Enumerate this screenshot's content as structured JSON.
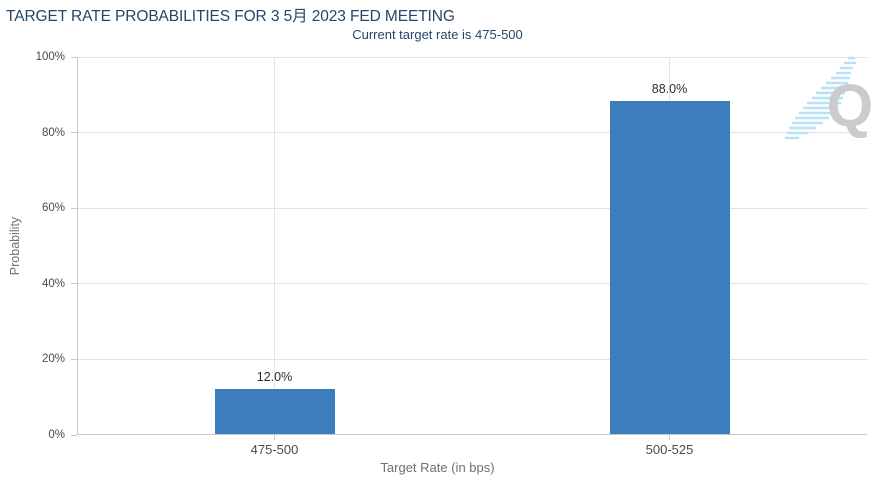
{
  "chart_data": {
    "type": "bar",
    "title": "TARGET RATE PROBABILITIES FOR 3 5月 2023 FED MEETING",
    "subtitle": "Current target rate is 475-500",
    "categories": [
      "475-500",
      "500-525"
    ],
    "values": [
      12.0,
      88.0
    ],
    "value_labels": [
      "12.0%",
      "88.0%"
    ],
    "xlabel": "Target Rate (in bps)",
    "ylabel": "Probability",
    "ylim": [
      0,
      100
    ],
    "yticks": [
      0,
      20,
      40,
      60,
      80,
      100
    ],
    "ytick_labels": [
      "0%",
      "20%",
      "40%",
      "60%",
      "80%",
      "100%"
    ],
    "grid": true,
    "legend_position": "none",
    "bar_color": "#3C7EBD"
  },
  "watermark": {
    "letter": "Q"
  },
  "colors": {
    "title": "#26456B",
    "bar": "#3C7EBD",
    "grid": "#E3E3E3",
    "axis": "#C9C9C9",
    "tick_label": "#4A4A4A",
    "axis_title": "#707070",
    "value_label": "#2F2F2F",
    "watermark_q": "#CBCBCB",
    "watermark_streak": "#B7E1F8"
  }
}
